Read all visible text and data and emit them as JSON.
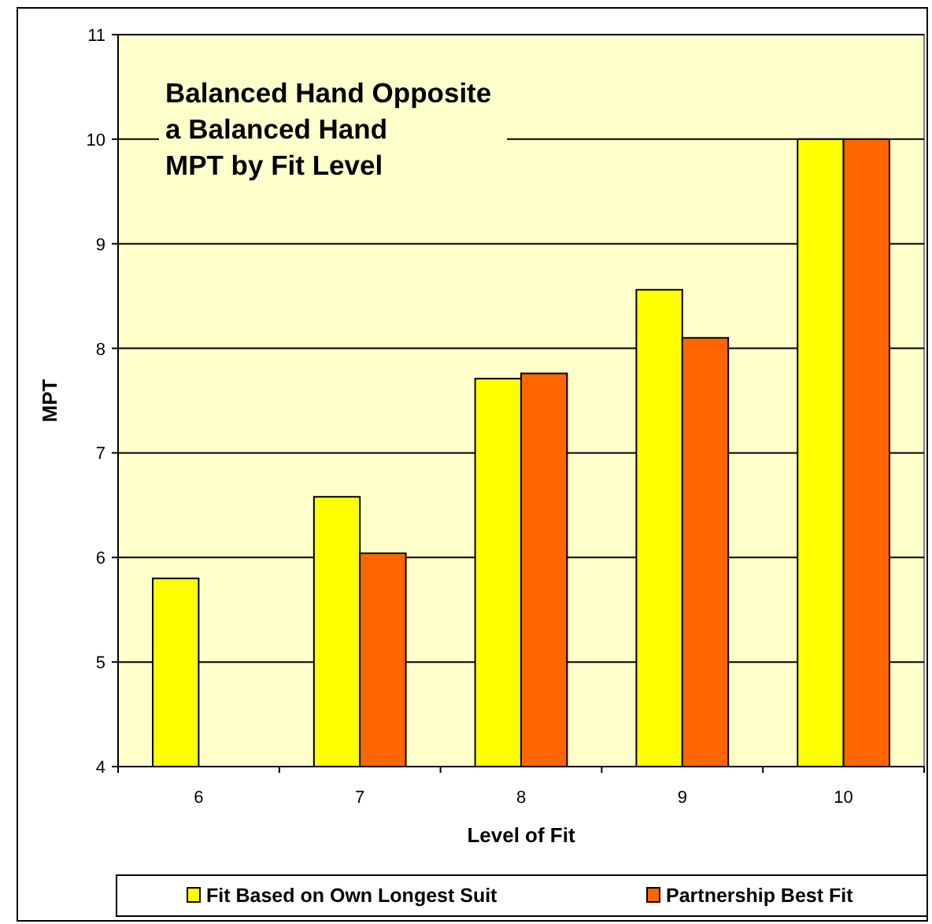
{
  "chart_data": {
    "type": "bar",
    "title": "Balanced Hand Opposite\na Balanced Hand\nMPT by Fit Level",
    "xlabel": "Level of Fit",
    "ylabel": "MPT",
    "categories": [
      "6",
      "7",
      "8",
      "9",
      "10"
    ],
    "series": [
      {
        "name": "Fit Based on Own Longest Suit",
        "color": "#ffff00",
        "values": [
          5.8,
          6.58,
          7.71,
          8.56,
          10
        ]
      },
      {
        "name": "Partnership Best Fit",
        "color": "#ff6600",
        "values": [
          null,
          6.04,
          7.76,
          8.1,
          10
        ]
      }
    ],
    "ylim": [
      4,
      11
    ],
    "yticks": [
      4,
      5,
      6,
      7,
      8,
      9,
      10,
      11
    ],
    "grid": "y",
    "legend": "bottom"
  }
}
